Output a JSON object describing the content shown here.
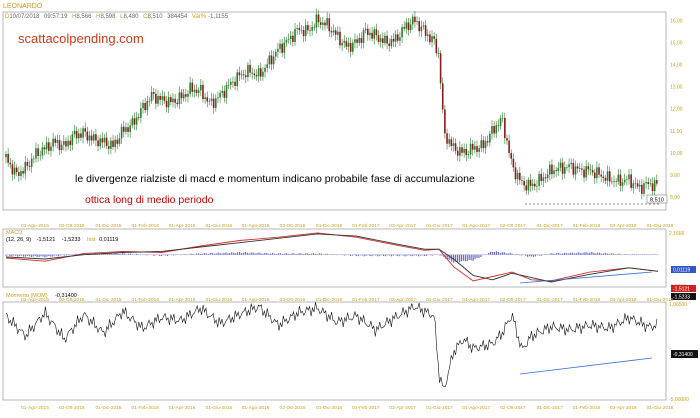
{
  "header": {
    "symbol": "LEONARDO",
    "date_value": "10/07/2018",
    "time_value": "09:57:19",
    "h_value": "8,566",
    "hl_value": "8,598",
    "l_value": "8,480",
    "c_value": "8,510",
    "vol_value": "384454",
    "var_value": "-1,1155",
    "date_prefix": "D",
    "h_prefix": "H",
    "l_prefix": "L",
    "c_prefix": "C",
    "var_prefix": "Var%"
  },
  "watermark": "scattacolpending.com",
  "annotations": {
    "main_text": "le divergenze rialziste di macd e momentum indicano probabile fase di accumulazione",
    "sub_text": "ottica long di medio periodo"
  },
  "macd": {
    "title": "MACD",
    "params": "(12, 26, 9)",
    "macd_value": "-1,5121",
    "signal_value": "-1,5233",
    "hist_label": "hist",
    "hist_value": "0,01119",
    "axis_top": "2,1666",
    "axis_bottom": "-2,8707"
  },
  "momentum": {
    "title": "Momento (MOM)",
    "value": "-0,31400",
    "axis_top": "1,06500",
    "axis_bottom": "-5,00000"
  },
  "colors": {
    "price": "#2e7d32",
    "macd_line": "#d32f2f",
    "signal_line": "#333333",
    "histogram": "#6a6ad0",
    "trendline": "#3a6fd8",
    "value_box_blue": "#3355cc",
    "value_box_red": "#cc2222",
    "axis_text": "#c8a020",
    "watermark": "#d03a1a",
    "annotation_sub": "#cc0000"
  },
  "chart_data": [
    {
      "type": "candlestick",
      "title": "LEONARDO",
      "x_ticks": [
        "01-Ago-2015",
        "02-Ott-2015",
        "01-Dic-2015",
        "01-Feb-2016",
        "01-Apr-2016",
        "01-Giu-2016",
        "01-Ago-2016",
        "03-Ott-2016",
        "01-Dic-2016",
        "01-Feb-2017",
        "03-Apr-2017",
        "01-Giu-2017",
        "01-Ago-2017",
        "02-Ott-2017",
        "01-Dic-2017",
        "01-Feb-2018",
        "03-Apr-2018",
        "01-Giu-2018"
      ],
      "y_ticks": [
        "8,00",
        "9,00",
        "10,00",
        "11,00",
        "12,00",
        "13,00",
        "14,00",
        "15,00",
        "16,00"
      ],
      "ylim": [
        7.5,
        16.2
      ],
      "last_value": "8,510",
      "x": [
        0,
        10,
        20,
        30,
        40,
        50,
        60,
        70,
        80,
        90,
        100,
        110,
        120,
        130,
        140,
        150,
        160,
        170,
        180,
        190,
        200,
        210,
        220,
        230,
        240,
        250,
        260,
        270,
        280,
        290,
        300,
        310,
        320,
        330,
        340,
        350,
        360,
        370,
        380,
        390,
        400,
        410,
        420,
        430,
        440,
        445,
        450,
        460,
        470,
        480,
        490,
        500,
        505,
        510,
        520,
        530,
        540,
        550,
        560,
        570,
        580,
        590,
        600,
        610,
        620,
        630,
        640,
        650,
        660,
        670
      ],
      "close": [
        9.8,
        9.0,
        9.3,
        9.9,
        10.2,
        10.5,
        10.3,
        10.8,
        10.9,
        10.6,
        10.5,
        10.3,
        11.0,
        11.3,
        12.0,
        12.6,
        12.4,
        12.3,
        12.5,
        12.9,
        12.8,
        12.2,
        12.6,
        13.1,
        13.5,
        13.7,
        13.5,
        14.1,
        14.7,
        15.1,
        15.6,
        15.5,
        16.0,
        15.8,
        15.3,
        14.8,
        15.0,
        15.5,
        15.3,
        15.0,
        15.1,
        15.7,
        16.0,
        15.5,
        15.0,
        14.4,
        10.9,
        10.2,
        10.0,
        10.2,
        10.3,
        11.0,
        11.3,
        11.5,
        9.4,
        8.6,
        8.5,
        8.8,
        9.2,
        9.3,
        9.4,
        9.2,
        9.2,
        9.0,
        8.8,
        8.7,
        8.8,
        8.4,
        8.6,
        8.51
      ]
    },
    {
      "type": "line",
      "title": "MACD",
      "ylim": [
        -2.87,
        2.17
      ],
      "x": [
        0,
        40,
        80,
        120,
        160,
        200,
        240,
        280,
        320,
        360,
        400,
        430,
        445,
        460,
        480,
        500,
        520,
        540,
        560,
        600,
        640,
        670
      ],
      "series": [
        {
          "name": "MACD",
          "values": [
            -0.3,
            -0.6,
            0.1,
            0.3,
            0.2,
            0.8,
            1.3,
            1.6,
            2.0,
            1.6,
            0.9,
            0.4,
            0.5,
            -1.1,
            -2.4,
            -2.0,
            -1.6,
            -2.3,
            -2.4,
            -1.6,
            -1.2,
            -1.51
          ]
        },
        {
          "name": "Signal",
          "values": [
            -0.2,
            -0.4,
            0.0,
            0.2,
            0.3,
            0.7,
            1.1,
            1.5,
            1.9,
            1.7,
            1.0,
            0.5,
            0.5,
            -0.4,
            -1.9,
            -2.3,
            -1.7,
            -2.1,
            -2.5,
            -1.8,
            -1.2,
            -1.52
          ]
        }
      ],
      "histogram": [
        -0.1,
        -0.2,
        0.1,
        0.1,
        -0.1,
        0.1,
        0.2,
        0.1,
        0.1,
        -0.1,
        -0.1,
        -0.1,
        0.0,
        -0.7,
        -0.5,
        0.3,
        0.1,
        -0.2,
        0.1,
        0.2,
        0.0,
        0.01
      ]
    },
    {
      "type": "line",
      "title": "Momento (MOM)",
      "ylim": [
        -5.0,
        1.07
      ],
      "x": [
        0,
        20,
        40,
        60,
        80,
        100,
        120,
        140,
        160,
        180,
        200,
        220,
        240,
        260,
        280,
        300,
        320,
        340,
        360,
        380,
        400,
        420,
        440,
        445,
        450,
        460,
        470,
        480,
        500,
        510,
        520,
        530,
        540,
        560,
        580,
        600,
        620,
        640,
        660,
        670
      ],
      "values": [
        0.3,
        -1.0,
        0.5,
        -1.2,
        0.4,
        -0.8,
        0.6,
        -0.5,
        0.2,
        0.0,
        0.8,
        -0.2,
        0.4,
        0.9,
        -0.3,
        0.5,
        0.8,
        -0.1,
        0.3,
        -0.6,
        0.2,
        0.9,
        0.3,
        -3.5,
        -4.5,
        -2.0,
        -1.2,
        -1.8,
        -1.5,
        -0.8,
        0.4,
        -1.9,
        -1.0,
        -0.4,
        -0.6,
        -0.3,
        -0.5,
        0.2,
        -0.4,
        -0.31
      ]
    }
  ]
}
